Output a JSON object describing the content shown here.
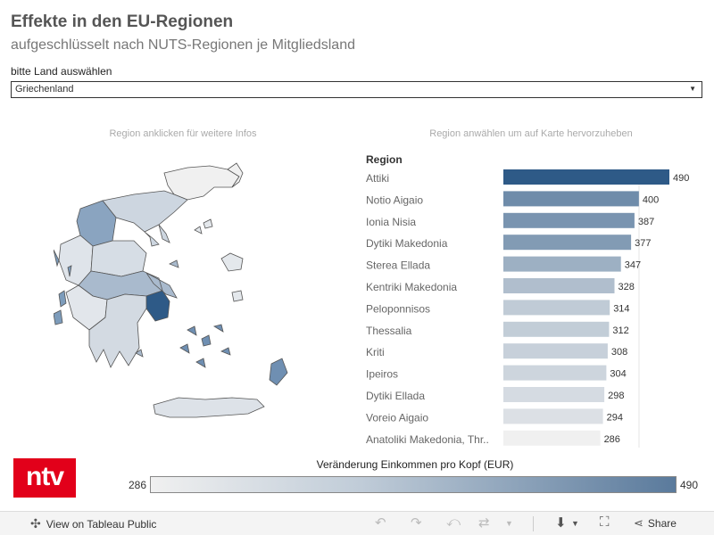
{
  "header": {
    "title": "Effekte in den EU-Regionen",
    "subtitle": "aufgeschlüsselt nach NUTS-Regionen je Mitgliedsland"
  },
  "selector": {
    "label": "bitte Land auswählen",
    "value": "Griechenland"
  },
  "hints": {
    "map": "Region anklicken für weitere Infos",
    "chart": "Region anwählen um auf Karte hervorzuheben"
  },
  "colors": {
    "low": "#f0f0f0",
    "high": "#2e5a87",
    "logo_bg": "#e2001a"
  },
  "chart_data": {
    "type": "bar",
    "orientation": "horizontal",
    "column_header": "Region",
    "categories": [
      "Attiki",
      "Notio Aigaio",
      "Ionia Nisia",
      "Dytiki Makedonia",
      "Sterea Ellada",
      "Kentriki Makedonia",
      "Peloponnisos",
      "Thessalia",
      "Kriti",
      "Ipeiros",
      "Dytiki Ellada",
      "Voreio Aigaio",
      "Anatoliki Makedonia, Thr.."
    ],
    "values": [
      490,
      400,
      387,
      377,
      347,
      328,
      314,
      312,
      308,
      304,
      298,
      294,
      286
    ],
    "value_min": 286,
    "value_max": 490
  },
  "legend": {
    "title": "Veränderung Einkommen pro Kopf (EUR)",
    "min": "286",
    "max": "490"
  },
  "logo": {
    "text": "ntv"
  },
  "toolbar": {
    "view_public": "View on Tableau Public",
    "share": "Share"
  }
}
